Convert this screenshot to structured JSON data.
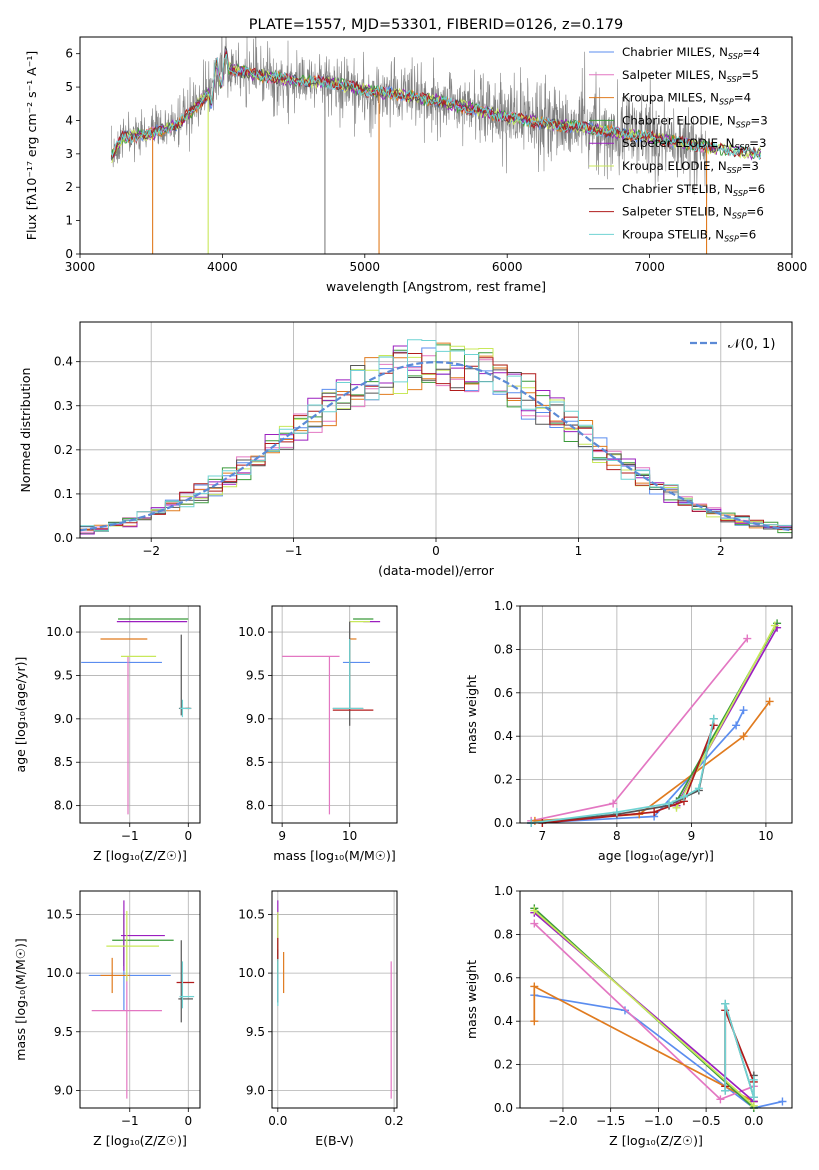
{
  "colors": {
    "Chabrier MILES": "#5b8def",
    "Salpeter MILES": "#e377c2",
    "Kroupa MILES": "#e07b1f",
    "Chabrier ELODIE": "#3a9a3a",
    "Salpeter ELODIE": "#9b1fbf",
    "Kroupa ELODIE": "#c8e85a",
    "Chabrier STELIB": "#555555",
    "Salpeter STELIB": "#b01b1b",
    "Kroupa STELIB": "#6fd3d3",
    "normal": "#5b8ad6",
    "data": "#808080"
  },
  "chart_data": [
    {
      "id": "spectrum",
      "type": "line",
      "title": "PLATE=1557, MJD=53301, FIBERID=0126, z=0.179",
      "xlabel": "wavelength [Angstrom, rest frame]",
      "ylabel": "Flux [fλ10⁻¹⁷ erg cm⁻² s⁻¹ A⁻¹]",
      "xlim": [
        3000,
        8000
      ],
      "ylim": [
        0,
        6.5
      ],
      "xticks": [
        3000,
        4000,
        5000,
        6000,
        7000,
        8000
      ],
      "yticks": [
        0,
        1,
        2,
        3,
        4,
        5,
        6
      ],
      "legend": "top-right",
      "legend_entries": [
        {
          "label": "Chabrier MILES, N",
          "sub": "SSP",
          "eq": "=4",
          "key": "Chabrier MILES"
        },
        {
          "label": "Salpeter MILES, N",
          "sub": "SSP",
          "eq": "=5",
          "key": "Salpeter MILES"
        },
        {
          "label": "Kroupa MILES, N",
          "sub": "SSP",
          "eq": "=4",
          "key": "Kroupa MILES"
        },
        {
          "label": "Chabrier ELODIE, N",
          "sub": "SSP",
          "eq": "=3",
          "key": "Chabrier ELODIE"
        },
        {
          "label": "Salpeter ELODIE, N",
          "sub": "SSP",
          "eq": "=3",
          "key": "Salpeter ELODIE"
        },
        {
          "label": "Kroupa ELODIE, N",
          "sub": "SSP",
          "eq": "=3",
          "key": "Kroupa ELODIE"
        },
        {
          "label": "Chabrier STELIB, N",
          "sub": "SSP",
          "eq": "=6",
          "key": "Chabrier STELIB"
        },
        {
          "label": "Salpeter STELIB, N",
          "sub": "SSP",
          "eq": "=6",
          "key": "Salpeter STELIB"
        },
        {
          "label": "Kroupa STELIB, N",
          "sub": "SSP",
          "eq": "=6",
          "key": "Kroupa STELIB"
        }
      ],
      "continuum": [
        [
          3220,
          2.9
        ],
        [
          3300,
          3.5
        ],
        [
          3500,
          3.6
        ],
        [
          3700,
          3.9
        ],
        [
          3900,
          4.8
        ],
        [
          4000,
          5.6
        ],
        [
          4200,
          5.4
        ],
        [
          4500,
          5.2
        ],
        [
          4800,
          5.1
        ],
        [
          5000,
          4.9
        ],
        [
          5200,
          4.8
        ],
        [
          5500,
          4.6
        ],
        [
          5800,
          4.3
        ],
        [
          6000,
          4.1
        ],
        [
          6300,
          3.9
        ],
        [
          6600,
          3.75
        ],
        [
          6800,
          3.6
        ],
        [
          7000,
          3.5
        ],
        [
          7400,
          3.2
        ],
        [
          7780,
          3.0
        ]
      ],
      "data_range": [
        3220,
        7400
      ],
      "drops": [
        {
          "x": 3510,
          "key": "Kroupa MILES"
        },
        {
          "x": 3900,
          "key": "Kroupa ELODIE"
        },
        {
          "x": 5100,
          "key": "Kroupa MILES"
        },
        {
          "x": 7400,
          "key": "Kroupa MILES"
        },
        {
          "x": 4720,
          "key": "data"
        }
      ]
    },
    {
      "id": "residuals",
      "type": "histogram",
      "xlabel": "(data-model)/error",
      "ylabel": "Normed distribution",
      "xlim": [
        -2.5,
        2.5
      ],
      "ylim": [
        0,
        0.49
      ],
      "xticks": [
        -2,
        -1,
        0,
        1,
        2
      ],
      "yticks": [
        0.0,
        0.1,
        0.2,
        0.3,
        0.4
      ],
      "grid": true,
      "legend": "top-right",
      "legend_label": "𝒩(0, 1)",
      "bin_width": 0.1
    },
    {
      "id": "age_vs_Z",
      "type": "errorbar",
      "xlabel": "Z [log₁₀(Z/Z☉)]",
      "ylabel": "age [log₁₀(age/yr)]",
      "xlim": [
        -1.85,
        0.2
      ],
      "ylim": [
        7.8,
        10.3
      ],
      "xticks": [
        -1,
        0
      ],
      "yticks": [
        8.0,
        8.5,
        9.0,
        9.5,
        10.0
      ],
      "grid": true,
      "points": [
        {
          "key": "Chabrier MILES",
          "x": -1.05,
          "y": 9.65,
          "xerr": [
            0.78,
            0.6
          ],
          "yerr": [
            0,
            0
          ]
        },
        {
          "key": "Salpeter MILES",
          "x": -1.03,
          "y": 9.72,
          "xerr": [
            0.0,
            0.0
          ],
          "yerr": [
            1.82,
            0.0
          ]
        },
        {
          "key": "Kroupa MILES",
          "x": -1.15,
          "y": 9.92,
          "xerr": [
            0.35,
            0.45
          ],
          "yerr": [
            0,
            0
          ]
        },
        {
          "key": "Chabrier ELODIE",
          "x": -1.1,
          "y": 10.15,
          "xerr": [
            0.1,
            1.1
          ],
          "yerr": [
            0,
            0
          ]
        },
        {
          "key": "Salpeter ELODIE",
          "x": -1.12,
          "y": 10.12,
          "xerr": [
            0.1,
            1.1
          ],
          "yerr": [
            0,
            0
          ]
        },
        {
          "key": "Kroupa ELODIE",
          "x": -1.15,
          "y": 9.72,
          "xerr": [
            0.0,
            0.6
          ],
          "yerr": [
            0,
            0
          ]
        },
        {
          "key": "Chabrier STELIB",
          "x": -0.12,
          "y": 9.12,
          "xerr": [
            0.04,
            0.15
          ],
          "yerr": [
            0.08,
            0.85
          ]
        },
        {
          "key": "Salpeter STELIB",
          "x": -0.05,
          "y": 9.12,
          "xerr": [
            0,
            0.1
          ],
          "yerr": [
            0,
            0
          ]
        },
        {
          "key": "Kroupa STELIB",
          "x": -0.1,
          "y": 9.12,
          "xerr": [
            0.05,
            0.15
          ],
          "yerr": [
            0.1,
            0.1
          ]
        }
      ]
    },
    {
      "id": "age_vs_mass",
      "type": "errorbar",
      "xlabel": "mass [log₁₀(M/M☉)]",
      "ylabel": "",
      "xlim": [
        8.85,
        10.7
      ],
      "ylim": [
        7.8,
        10.3
      ],
      "xticks": [
        9,
        10
      ],
      "yticks": [
        8.0,
        8.5,
        9.0,
        9.5,
        10.0
      ],
      "grid": true,
      "points": [
        {
          "key": "Chabrier MILES",
          "x": 10.0,
          "y": 9.65,
          "xerr": [
            0.1,
            0.3
          ],
          "yerr": [
            0,
            0
          ]
        },
        {
          "key": "Salpeter MILES",
          "x": 9.7,
          "y": 9.72,
          "xerr": [
            0.7,
            0.15
          ],
          "yerr": [
            1.82,
            0
          ]
        },
        {
          "key": "Kroupa MILES",
          "x": 10.0,
          "y": 9.92,
          "xerr": [
            0,
            0.1
          ],
          "yerr": [
            0.8,
            0
          ]
        },
        {
          "key": "Chabrier ELODIE",
          "x": 10.3,
          "y": 10.15,
          "xerr": [
            0.25,
            0.05
          ],
          "yerr": [
            0,
            0
          ]
        },
        {
          "key": "Salpeter ELODIE",
          "x": 10.3,
          "y": 10.12,
          "xerr": [
            0.1,
            0.15
          ],
          "yerr": [
            0,
            0
          ]
        },
        {
          "key": "Kroupa ELODIE",
          "x": 10.2,
          "y": 10.12,
          "xerr": [
            0.2,
            0.1
          ],
          "yerr": [
            0,
            0
          ]
        },
        {
          "key": "Chabrier STELIB",
          "x": 10.0,
          "y": 9.12,
          "xerr": [
            0.25,
            0.2
          ],
          "yerr": [
            0.2,
            1.0
          ]
        },
        {
          "key": "Salpeter STELIB",
          "x": 10.0,
          "y": 9.1,
          "xerr": [
            0.25,
            0.35
          ],
          "yerr": [
            0,
            0
          ]
        },
        {
          "key": "Kroupa STELIB",
          "x": 10.0,
          "y": 9.12,
          "xerr": [
            0.25,
            0.2
          ],
          "yerr": [
            0,
            0.8
          ]
        }
      ]
    },
    {
      "id": "mass_weight_vs_age",
      "type": "line",
      "xlabel": "age [log₁₀(age/yr)]",
      "ylabel": "mass weight",
      "xlim": [
        6.7,
        10.35
      ],
      "ylim": [
        0,
        1.0
      ],
      "xticks": [
        7,
        8,
        9,
        10
      ],
      "yticks": [
        0.0,
        0.2,
        0.4,
        0.6,
        0.8,
        1.0
      ],
      "grid": true,
      "series": [
        {
          "key": "Chabrier MILES",
          "x": [
            6.85,
            8.5,
            9.6,
            9.7
          ],
          "y": [
            0.0,
            0.03,
            0.45,
            0.52
          ]
        },
        {
          "key": "Salpeter MILES",
          "x": [
            6.85,
            7.95,
            9.75
          ],
          "y": [
            0.01,
            0.09,
            0.85
          ]
        },
        {
          "key": "Kroupa MILES",
          "x": [
            6.9,
            8.3,
            9.7,
            10.05
          ],
          "y": [
            0.01,
            0.04,
            0.4,
            0.56
          ]
        },
        {
          "key": "Chabrier ELODIE",
          "x": [
            8.8,
            10.15
          ],
          "y": [
            0.1,
            0.92
          ]
        },
        {
          "key": "Salpeter ELODIE",
          "x": [
            8.8,
            10.15
          ],
          "y": [
            0.08,
            0.9
          ]
        },
        {
          "key": "Kroupa ELODIE",
          "x": [
            8.8,
            10.12
          ],
          "y": [
            0.07,
            0.91
          ]
        },
        {
          "key": "Chabrier STELIB",
          "x": [
            6.85,
            8.0,
            8.7,
            8.85,
            9.1,
            9.3
          ],
          "y": [
            0.0,
            0.04,
            0.08,
            0.11,
            0.15,
            0.48
          ]
        },
        {
          "key": "Salpeter STELIB",
          "x": [
            7.0,
            8.5,
            8.9,
            9.3
          ],
          "y": [
            0.0,
            0.05,
            0.1,
            0.45
          ]
        },
        {
          "key": "Kroupa STELIB",
          "x": [
            6.85,
            8.0,
            8.7,
            8.9,
            9.1,
            9.3
          ],
          "y": [
            0.0,
            0.05,
            0.09,
            0.12,
            0.16,
            0.48
          ]
        }
      ]
    },
    {
      "id": "mass_vs_Z",
      "type": "errorbar",
      "xlabel": "Z [log₁₀(Z/Z☉)]",
      "ylabel": "mass [log₁₀(M/M☉)]",
      "xlim": [
        -1.85,
        0.2
      ],
      "ylim": [
        8.85,
        10.7
      ],
      "xticks": [
        -1,
        0
      ],
      "yticks": [
        9.0,
        9.5,
        10.0,
        10.5
      ],
      "grid": true,
      "points": [
        {
          "key": "Chabrier MILES",
          "x": -1.1,
          "y": 9.98,
          "xerr": [
            0.6,
            0.8
          ],
          "yerr": [
            0.3,
            0.3
          ]
        },
        {
          "key": "Salpeter MILES",
          "x": -1.05,
          "y": 9.68,
          "xerr": [
            0.6,
            0.6
          ],
          "yerr": [
            0.75,
            0.3
          ]
        },
        {
          "key": "Kroupa MILES",
          "x": -1.3,
          "y": 9.98,
          "xerr": [
            0.2,
            0.3
          ],
          "yerr": [
            0.15,
            0.15
          ]
        },
        {
          "key": "Chabrier ELODIE",
          "x": -1.1,
          "y": 10.28,
          "xerr": [
            0.2,
            0.85
          ],
          "yerr": [
            0.22,
            0.22
          ]
        },
        {
          "key": "Salpeter ELODIE",
          "x": -1.1,
          "y": 10.32,
          "xerr": [
            0.05,
            0.7
          ],
          "yerr": [
            0.3,
            0.3
          ]
        },
        {
          "key": "Kroupa ELODIE",
          "x": -1.05,
          "y": 10.23,
          "xerr": [
            0.35,
            0.55
          ],
          "yerr": [
            0.3,
            0.3
          ]
        },
        {
          "key": "Chabrier STELIB",
          "x": -0.12,
          "y": 9.78,
          "xerr": [
            0.05,
            0.2
          ],
          "yerr": [
            0.2,
            0.5
          ]
        },
        {
          "key": "Salpeter STELIB",
          "x": -0.1,
          "y": 9.92,
          "xerr": [
            0.1,
            0.2
          ],
          "yerr": [
            0,
            0
          ]
        },
        {
          "key": "Kroupa STELIB",
          "x": -0.1,
          "y": 9.8,
          "xerr": [
            0.05,
            0.2
          ],
          "yerr": [
            0.1,
            0.3
          ]
        }
      ]
    },
    {
      "id": "mass_vs_ebv",
      "type": "errorbar",
      "xlabel": "E(B-V)",
      "ylabel": "",
      "xlim": [
        -0.01,
        0.205
      ],
      "ylim": [
        8.85,
        10.7
      ],
      "xticks": [
        0.0,
        0.2
      ],
      "yticks": [
        9.0,
        9.5,
        10.0,
        10.5
      ],
      "grid": true,
      "points": [
        {
          "key": "Chabrier MILES",
          "x": 0.0,
          "y": 10.0,
          "xerr": [
            0,
            0
          ],
          "yerr": [
            0.25,
            0.25
          ]
        },
        {
          "key": "Salpeter MILES",
          "x": 0.195,
          "y": 9.68,
          "xerr": [
            0,
            0
          ],
          "yerr": [
            0.75,
            0.42
          ]
        },
        {
          "key": "Kroupa MILES",
          "x": 0.01,
          "y": 9.98,
          "xerr": [
            0,
            0
          ],
          "yerr": [
            0.15,
            0.2
          ]
        },
        {
          "key": "Chabrier ELODIE",
          "x": 0.0,
          "y": 10.25,
          "xerr": [
            0,
            0
          ],
          "yerr": [
            0.25,
            0.25
          ]
        },
        {
          "key": "Salpeter ELODIE",
          "x": 0.0,
          "y": 10.32,
          "xerr": [
            0,
            0
          ],
          "yerr": [
            0.2,
            0.3
          ]
        },
        {
          "key": "Kroupa ELODIE",
          "x": 0.0,
          "y": 10.22,
          "xerr": [
            0,
            0
          ],
          "yerr": [
            0.25,
            0.3
          ]
        },
        {
          "key": "Chabrier STELIB",
          "x": 0.0,
          "y": 9.9,
          "xerr": [
            0,
            0
          ],
          "yerr": [
            0.15,
            0.3
          ]
        },
        {
          "key": "Salpeter STELIB",
          "x": 0.0,
          "y": 10.2,
          "xerr": [
            0,
            0
          ],
          "yerr": [
            0.1,
            0.1
          ]
        },
        {
          "key": "Kroupa STELIB",
          "x": 0.0,
          "y": 9.82,
          "xerr": [
            0,
            0
          ],
          "yerr": [
            0.1,
            0.3
          ]
        }
      ]
    },
    {
      "id": "mass_weight_vs_Z",
      "type": "line",
      "xlabel": "Z [log₁₀(Z/Z☉)]",
      "ylabel": "mass weight",
      "xlim": [
        -2.45,
        0.4
      ],
      "ylim": [
        0,
        1.0
      ],
      "xticks": [
        -2.0,
        -1.5,
        -1.0,
        -0.5,
        0.0
      ],
      "yticks": [
        0.0,
        0.2,
        0.4,
        0.6,
        0.8,
        1.0
      ],
      "grid": true,
      "series": [
        {
          "key": "Chabrier MILES",
          "x": [
            -2.3,
            -1.35,
            0.0,
            0.3
          ],
          "y": [
            0.52,
            0.45,
            0.0,
            0.03
          ]
        },
        {
          "key": "Salpeter MILES",
          "x": [
            -2.3,
            -0.35,
            0.0
          ],
          "y": [
            0.85,
            0.04,
            0.1
          ]
        },
        {
          "key": "Kroupa MILES",
          "x": [
            -2.3,
            -2.3,
            0.0
          ],
          "y": [
            0.4,
            0.56,
            0.03
          ]
        },
        {
          "key": "Chabrier ELODIE",
          "x": [
            -2.3,
            0.0
          ],
          "y": [
            0.92,
            0.0
          ]
        },
        {
          "key": "Salpeter ELODIE",
          "x": [
            -2.3,
            0.0
          ],
          "y": [
            0.9,
            0.03
          ]
        },
        {
          "key": "Kroupa ELODIE",
          "x": [
            -2.3,
            0.0
          ],
          "y": [
            0.91,
            0.01
          ]
        },
        {
          "key": "Chabrier STELIB",
          "x": [
            -0.3,
            -0.3,
            0.0,
            0.0
          ],
          "y": [
            0.08,
            0.48,
            0.05,
            0.15
          ]
        },
        {
          "key": "Salpeter STELIB",
          "x": [
            -0.3,
            -0.3,
            0.0
          ],
          "y": [
            0.1,
            0.45,
            0.12
          ]
        },
        {
          "key": "Kroupa STELIB",
          "x": [
            -0.3,
            -0.3,
            0.0,
            0.0
          ],
          "y": [
            0.08,
            0.48,
            0.05,
            0.13
          ]
        }
      ]
    }
  ]
}
